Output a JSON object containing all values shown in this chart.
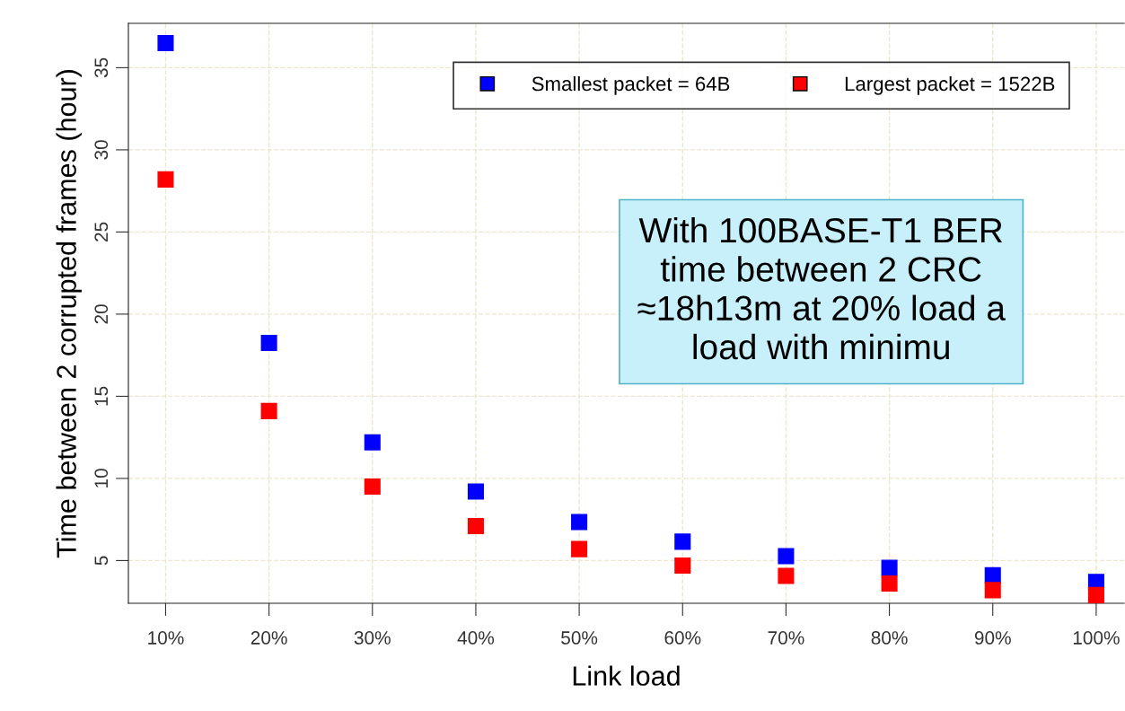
{
  "chart_data": {
    "type": "scatter",
    "xlabel": "Link load",
    "ylabel": "Time between 2 corrupted frames (hour)",
    "categories": [
      "10%",
      "20%",
      "30%",
      "40%",
      "50%",
      "60%",
      "70%",
      "80%",
      "90%",
      "100%"
    ],
    "series": [
      {
        "name": "Smallest packet = 64B",
        "color": "#0000ff",
        "values": [
          36.5,
          18.25,
          12.2,
          9.2,
          7.35,
          6.15,
          5.27,
          4.56,
          4.1,
          3.7
        ]
      },
      {
        "name": "Largest packet = 1522B",
        "color": "#ff0000",
        "values": [
          28.2,
          14.1,
          9.5,
          7.1,
          5.7,
          4.7,
          4.07,
          3.6,
          3.2,
          2.9
        ]
      }
    ],
    "ylim": [
      2.4,
      37.7
    ],
    "yticks": [
      5,
      10,
      15,
      20,
      25,
      30,
      35
    ],
    "grid": true,
    "legend": "top right",
    "marker": "square",
    "annotations": [
      "With 100BASE-T1 BER\ntime between 2 CRC\n≈18h13m at 20% load a\nload with minimu"
    ]
  }
}
